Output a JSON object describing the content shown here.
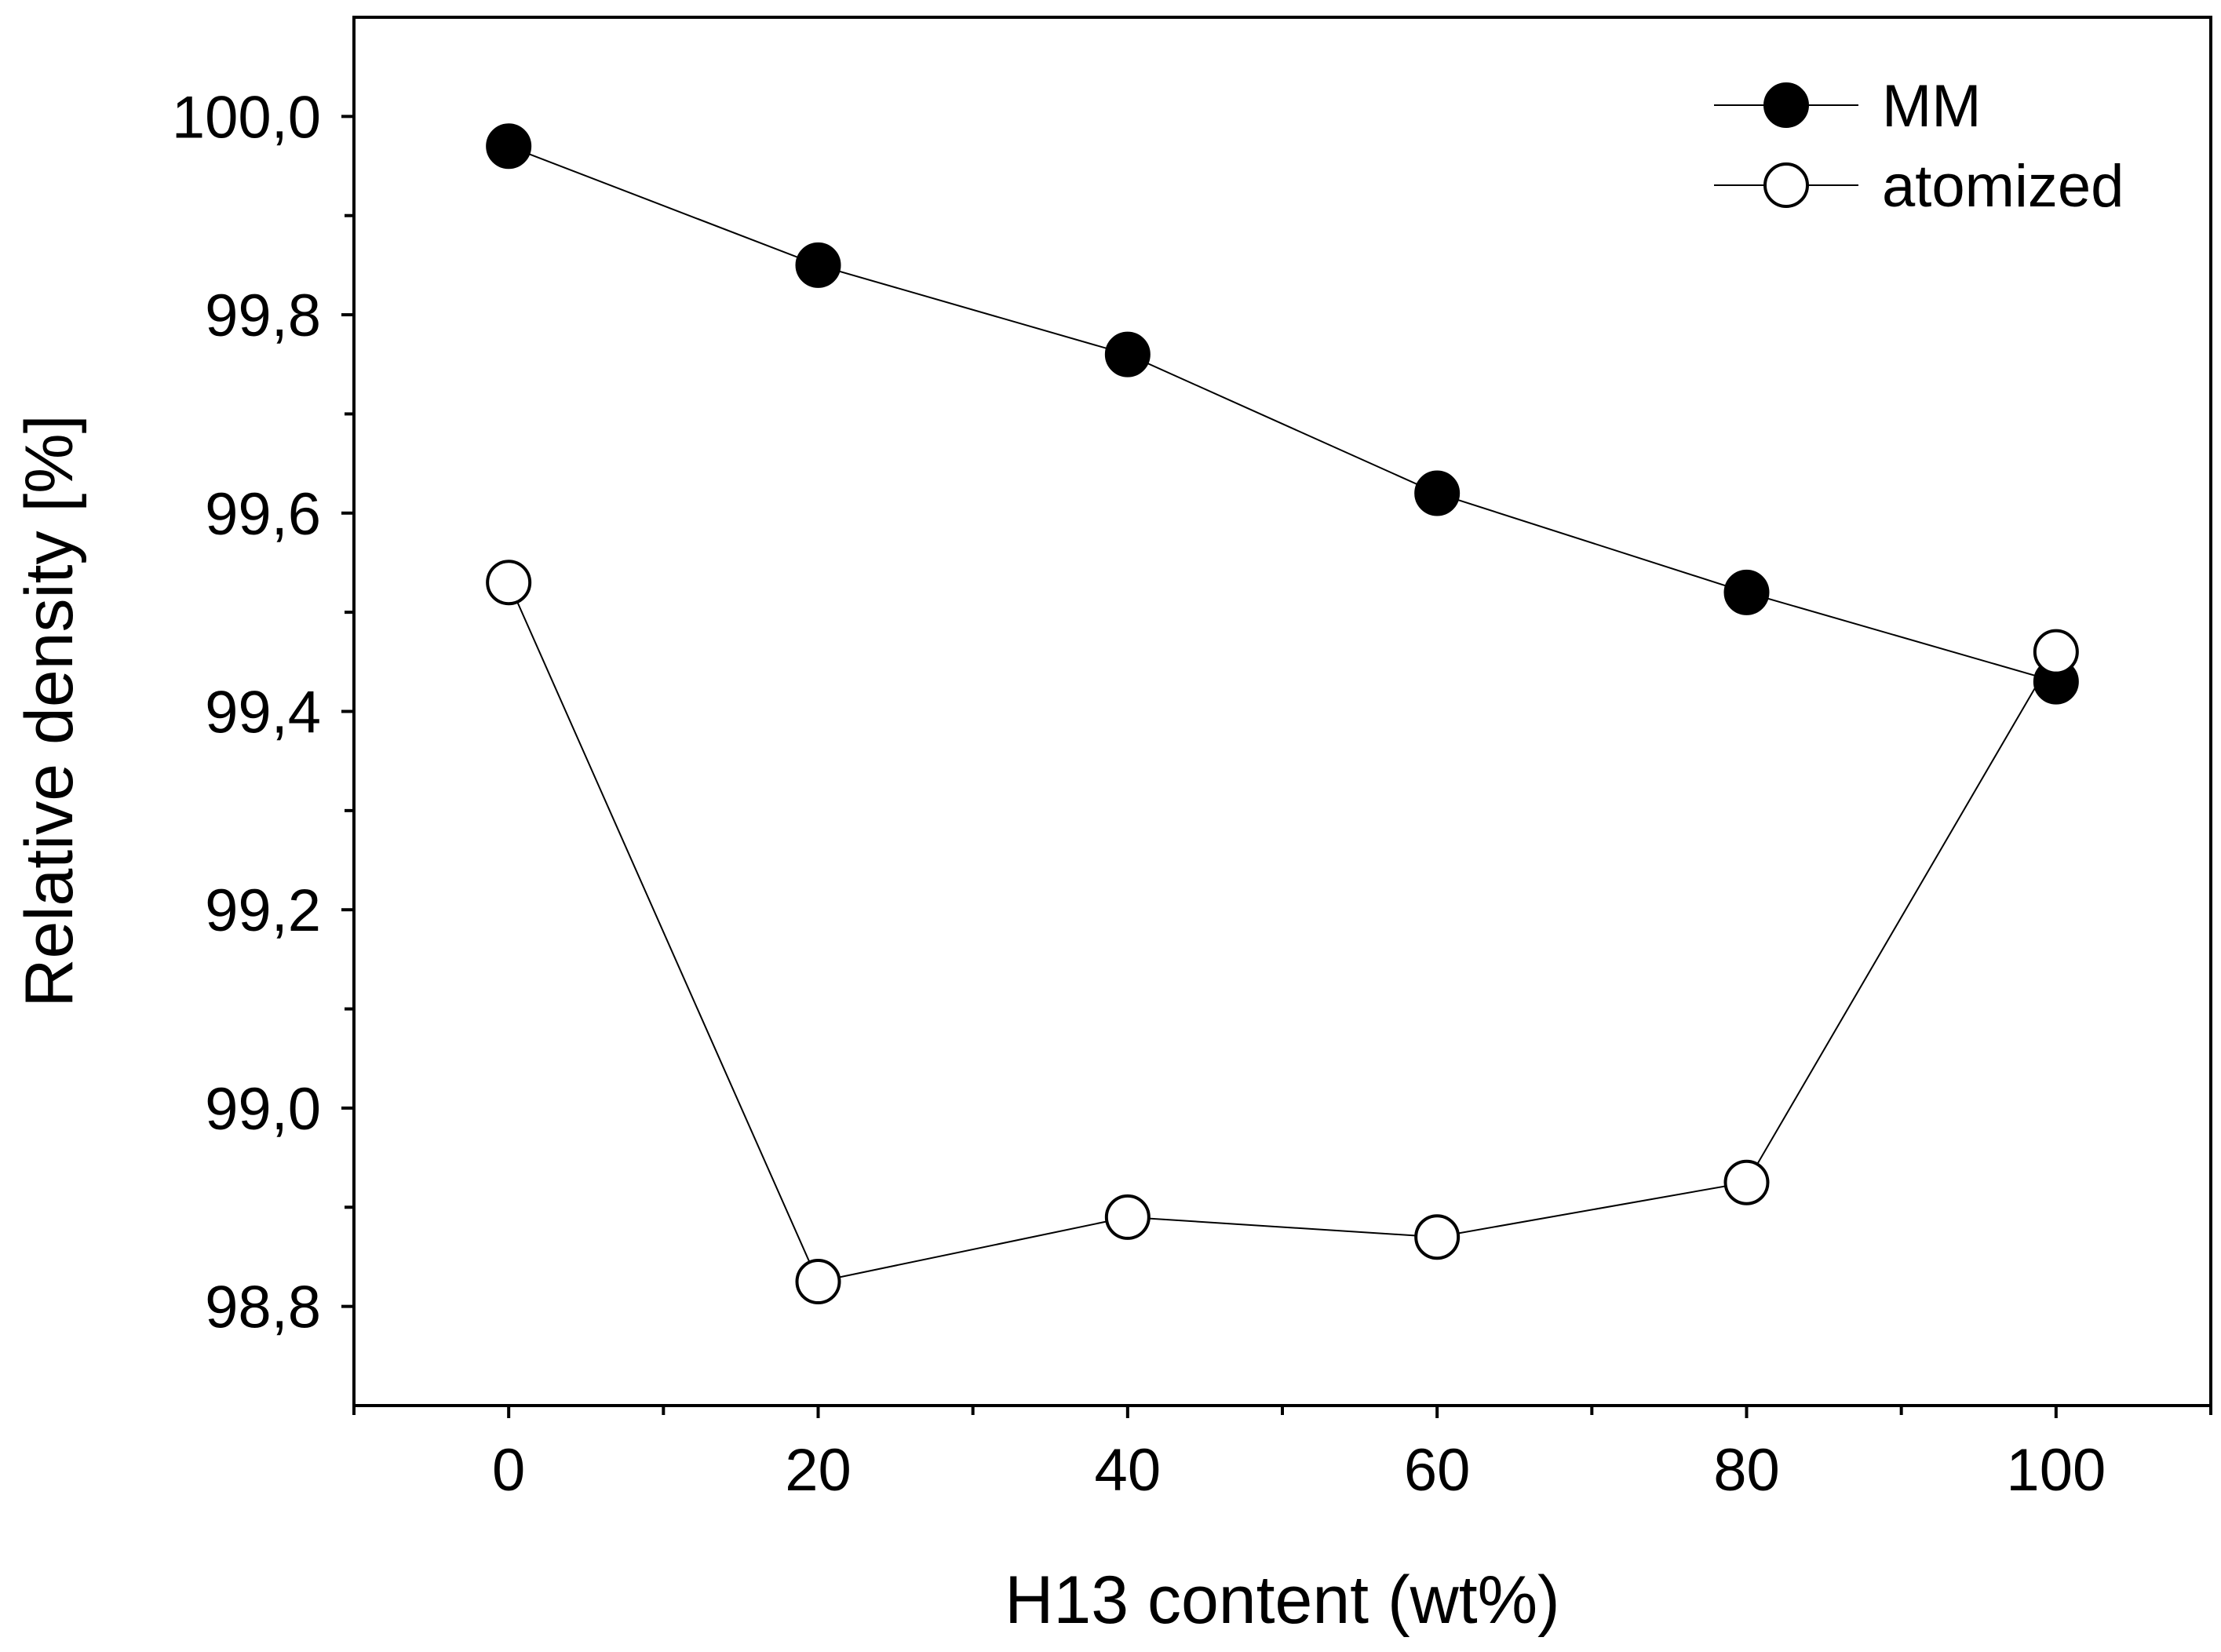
{
  "chart_data": {
    "type": "line",
    "xlabel": "H13 content (wt%)",
    "ylabel": "Relative density  [%]",
    "xlim": [
      -10,
      110
    ],
    "ylim": [
      98.7,
      100.1
    ],
    "x_ticks": [
      0,
      20,
      40,
      60,
      80,
      100
    ],
    "x_tick_labels": [
      "0",
      "20",
      "40",
      "60",
      "80",
      "100"
    ],
    "x_minor_ticks": [
      -10,
      10,
      30,
      50,
      70,
      90,
      110
    ],
    "y_ticks": [
      98.8,
      99.0,
      99.2,
      99.4,
      99.6,
      99.8,
      100.0
    ],
    "y_tick_labels": [
      "98,8",
      "99,0",
      "99,2",
      "99,4",
      "99,6",
      "99,8",
      "100,0"
    ],
    "y_minor_ticks": [
      98.9,
      99.1,
      99.3,
      99.5,
      99.7,
      99.9
    ],
    "legend_position": "top-right",
    "grid": false,
    "series": [
      {
        "name": "MM",
        "marker": "filled-circle",
        "color": "#000000",
        "x": [
          0,
          20,
          40,
          60,
          80,
          100
        ],
        "y": [
          99.97,
          99.85,
          99.76,
          99.62,
          99.52,
          99.43
        ]
      },
      {
        "name": "atomized",
        "marker": "open-circle",
        "color": "#000000",
        "x": [
          0,
          20,
          40,
          60,
          80,
          100
        ],
        "y": [
          99.53,
          98.825,
          98.89,
          98.87,
          98.925,
          99.46
        ]
      }
    ]
  }
}
